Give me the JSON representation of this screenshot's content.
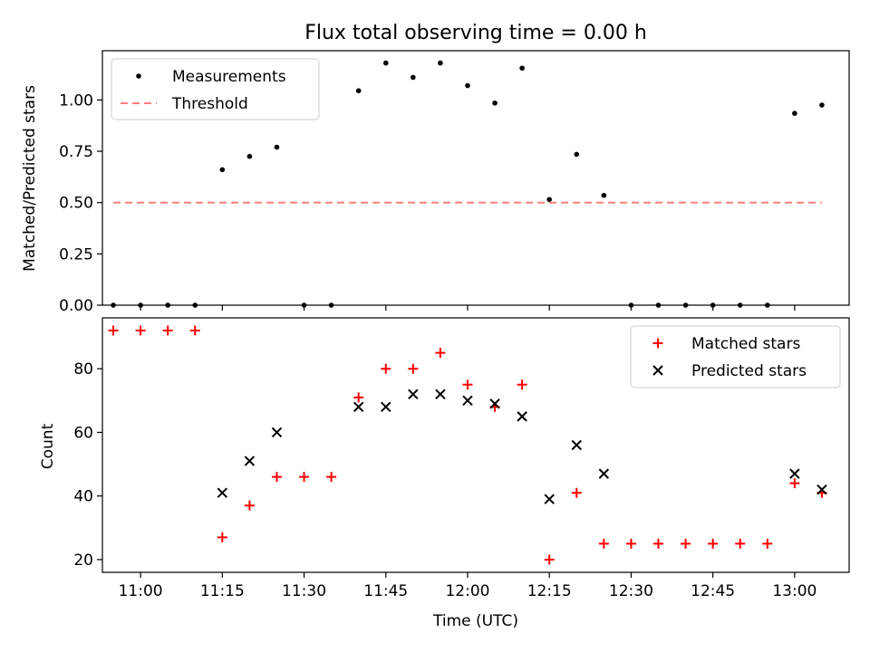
{
  "chart_data": [
    {
      "type": "scatter",
      "title": "Flux total observing time = 0.00 h",
      "xlabel": "",
      "ylabel": "Matched/Predicted stars",
      "x_axis": "time (UTC)",
      "xlim": [
        "10:53",
        "13:10"
      ],
      "ylim": [
        0,
        1.24
      ],
      "yticks": [
        "0.00",
        "0.25",
        "0.50",
        "0.75",
        "1.00"
      ],
      "legend_position": "top-left",
      "grid": false,
      "series": [
        {
          "name": "Measurements",
          "marker": "dot",
          "color": "#000000",
          "points": [
            {
              "x": "10:55",
              "y": 0.0
            },
            {
              "x": "11:00",
              "y": 0.0
            },
            {
              "x": "11:05",
              "y": 0.0
            },
            {
              "x": "11:10",
              "y": 0.0
            },
            {
              "x": "11:15",
              "y": 0.66
            },
            {
              "x": "11:20",
              "y": 0.725
            },
            {
              "x": "11:25",
              "y": 0.77
            },
            {
              "x": "11:30",
              "y": 0.0
            },
            {
              "x": "11:35",
              "y": 0.0
            },
            {
              "x": "11:40",
              "y": 1.045
            },
            {
              "x": "11:45",
              "y": 1.18
            },
            {
              "x": "11:50",
              "y": 1.11
            },
            {
              "x": "11:55",
              "y": 1.18
            },
            {
              "x": "12:00",
              "y": 1.07
            },
            {
              "x": "12:05",
              "y": 0.985
            },
            {
              "x": "12:10",
              "y": 1.155
            },
            {
              "x": "12:15",
              "y": 0.515
            },
            {
              "x": "12:20",
              "y": 0.735
            },
            {
              "x": "12:25",
              "y": 0.535
            },
            {
              "x": "12:30",
              "y": 0.0
            },
            {
              "x": "12:35",
              "y": 0.0
            },
            {
              "x": "12:40",
              "y": 0.0
            },
            {
              "x": "12:45",
              "y": 0.0
            },
            {
              "x": "12:50",
              "y": 0.0
            },
            {
              "x": "12:55",
              "y": 0.0
            },
            {
              "x": "13:00",
              "y": 0.935
            },
            {
              "x": "13:05",
              "y": 0.975
            }
          ]
        },
        {
          "name": "Threshold",
          "style": "dashed-line",
          "color": "#ff7f7f",
          "points": [
            {
              "x": "10:55",
              "y": 0.5
            },
            {
              "x": "13:05",
              "y": 0.5
            }
          ]
        }
      ]
    },
    {
      "type": "scatter",
      "title": "",
      "xlabel": "Time (UTC)",
      "ylabel": "Count",
      "xlim": [
        "10:53",
        "13:10"
      ],
      "ylim": [
        16,
        96
      ],
      "yticks": [
        "20",
        "40",
        "60",
        "80"
      ],
      "xticks": [
        "11:00",
        "11:15",
        "11:30",
        "11:45",
        "12:00",
        "12:15",
        "12:30",
        "12:45",
        "13:00"
      ],
      "legend_position": "top-right",
      "grid": false,
      "series": [
        {
          "name": "Matched stars",
          "marker": "plus",
          "color": "#ff0000",
          "points": [
            {
              "x": "10:55",
              "y": 92
            },
            {
              "x": "11:00",
              "y": 92
            },
            {
              "x": "11:05",
              "y": 92
            },
            {
              "x": "11:10",
              "y": 92
            },
            {
              "x": "11:15",
              "y": 27
            },
            {
              "x": "11:20",
              "y": 37
            },
            {
              "x": "11:25",
              "y": 46
            },
            {
              "x": "11:30",
              "y": 46
            },
            {
              "x": "11:35",
              "y": 46
            },
            {
              "x": "11:40",
              "y": 71
            },
            {
              "x": "11:45",
              "y": 80
            },
            {
              "x": "11:50",
              "y": 80
            },
            {
              "x": "11:55",
              "y": 85
            },
            {
              "x": "12:00",
              "y": 75
            },
            {
              "x": "12:05",
              "y": 68
            },
            {
              "x": "12:10",
              "y": 75
            },
            {
              "x": "12:15",
              "y": 20
            },
            {
              "x": "12:20",
              "y": 41
            },
            {
              "x": "12:25",
              "y": 25
            },
            {
              "x": "12:30",
              "y": 25
            },
            {
              "x": "12:35",
              "y": 25
            },
            {
              "x": "12:40",
              "y": 25
            },
            {
              "x": "12:45",
              "y": 25
            },
            {
              "x": "12:50",
              "y": 25
            },
            {
              "x": "12:55",
              "y": 25
            },
            {
              "x": "13:00",
              "y": 44
            },
            {
              "x": "13:05",
              "y": 41
            }
          ]
        },
        {
          "name": "Predicted stars",
          "marker": "x",
          "color": "#000000",
          "points": [
            {
              "x": "11:15",
              "y": 41
            },
            {
              "x": "11:20",
              "y": 51
            },
            {
              "x": "11:25",
              "y": 60
            },
            {
              "x": "11:40",
              "y": 68
            },
            {
              "x": "11:45",
              "y": 68
            },
            {
              "x": "11:50",
              "y": 72
            },
            {
              "x": "11:55",
              "y": 72
            },
            {
              "x": "12:00",
              "y": 70
            },
            {
              "x": "12:05",
              "y": 69
            },
            {
              "x": "12:10",
              "y": 65
            },
            {
              "x": "12:15",
              "y": 39
            },
            {
              "x": "12:20",
              "y": 56
            },
            {
              "x": "12:25",
              "y": 47
            },
            {
              "x": "13:00",
              "y": 47
            },
            {
              "x": "13:05",
              "y": 42
            }
          ]
        }
      ]
    }
  ]
}
